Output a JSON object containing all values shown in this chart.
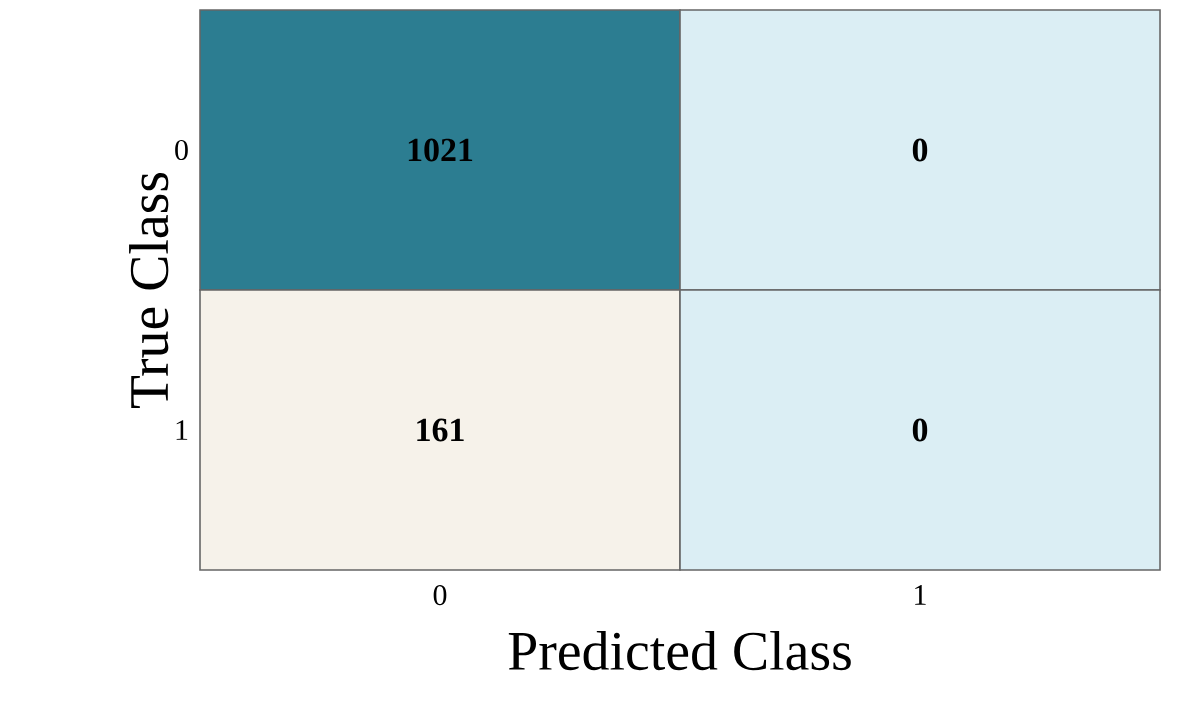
{
  "chart_data": {
    "type": "heatmap",
    "xlabel": "Predicted Class",
    "ylabel": "True Class",
    "categories": [
      "0",
      "1"
    ],
    "y_categories": [
      "0",
      "1"
    ],
    "cells": [
      [
        1021,
        0
      ],
      [
        161,
        0
      ]
    ],
    "colors": [
      [
        "#2c7d91",
        "#dbeef4"
      ],
      [
        "#f6f2ea",
        "#dbeef4"
      ]
    ],
    "data_labels": true
  }
}
